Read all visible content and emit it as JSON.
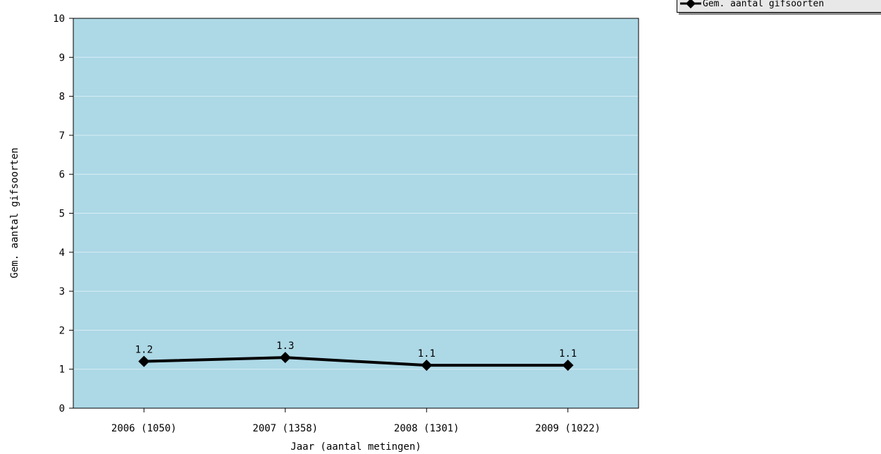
{
  "chart_data": {
    "type": "line",
    "categories": [
      "2006 (1050)",
      "2007 (1358)",
      "2008 (1301)",
      "2009 (1022)"
    ],
    "series": [
      {
        "name": "Gem. aantal gifsoorten",
        "values": [
          1.2,
          1.3,
          1.1,
          1.1
        ]
      }
    ],
    "data_labels": [
      "1.2",
      "1.3",
      "1.1",
      "1.1"
    ],
    "xlabel": "Jaar (aantal metingen)",
    "ylabel": "Gem. aantal gifsoorten",
    "ylim": [
      0,
      10
    ],
    "yticks": [
      "0",
      "1",
      "2",
      "3",
      "4",
      "5",
      "6",
      "7",
      "8",
      "9",
      "10"
    ],
    "grid": true,
    "legend_position": "top-right",
    "colors": {
      "plot_background": "#add8e6",
      "line": "#000000",
      "grid": "#d8eef5"
    }
  }
}
